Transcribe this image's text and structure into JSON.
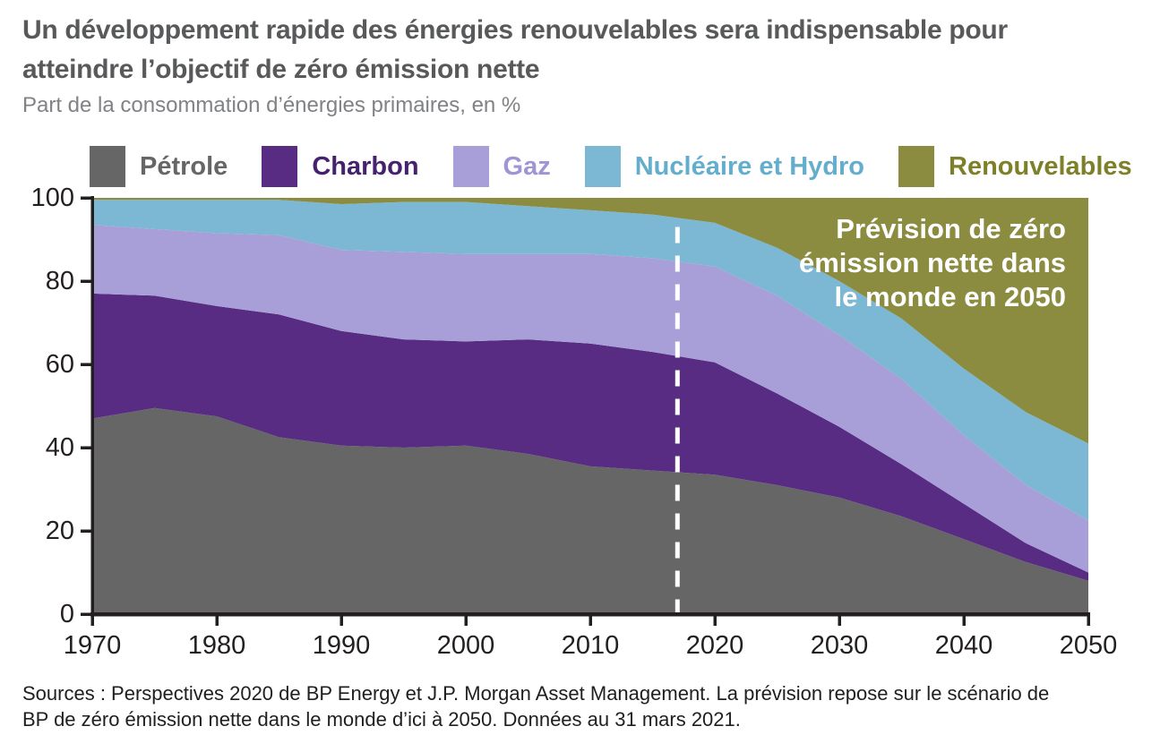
{
  "header": {
    "title_line1": "Un développement rapide des énergies renouvelables sera indispensable pour",
    "title_line2": "atteindre l’objectif de zéro émission nette",
    "subtitle": "Part de la consommation d’énergies primaires, en %"
  },
  "legend": {
    "items": [
      {
        "label": "Pétrole",
        "swatch_color": "#666666",
        "label_color": "#666666"
      },
      {
        "label": "Charbon",
        "swatch_color": "#582c83",
        "label_color": "#46226e"
      },
      {
        "label": "Gaz",
        "swatch_color": "#a89fd9",
        "label_color": "#a095d4"
      },
      {
        "label": "Nucléaire et Hydro",
        "swatch_color": "#7cb7d3",
        "label_color": "#64aecd"
      },
      {
        "label": "Renouvelables",
        "swatch_color": "#8b8c3f",
        "label_color": "#7d8029"
      }
    ]
  },
  "chart_data": {
    "type": "area",
    "stacked": true,
    "unit": "%",
    "title": "Part de la consommation d’énergies primaires, en %",
    "x": [
      1970,
      1975,
      1980,
      1985,
      1990,
      1995,
      2000,
      2005,
      2010,
      2015,
      2020,
      2025,
      2030,
      2035,
      2040,
      2045,
      2050
    ],
    "series": [
      {
        "name": "Pétrole",
        "color": "#666666",
        "values": [
          47,
          49.5,
          47.5,
          42.5,
          40.5,
          40,
          40.5,
          38.5,
          35.5,
          34.5,
          33.5,
          31,
          28,
          23.5,
          18,
          12.5,
          8
        ]
      },
      {
        "name": "Charbon",
        "color": "#582c83",
        "values": [
          30,
          27,
          26.5,
          29.5,
          27.5,
          26,
          25,
          27.5,
          29.5,
          28.5,
          27,
          22,
          17,
          12.5,
          8.5,
          4.5,
          2
        ]
      },
      {
        "name": "Gaz",
        "color": "#a89fd9",
        "values": [
          16.5,
          16,
          17.5,
          19,
          19.5,
          21,
          21,
          20.5,
          21.5,
          22.5,
          23,
          23.5,
          22,
          20.5,
          16.5,
          14,
          12.5
        ]
      },
      {
        "name": "Nucléaire et Hydro",
        "color": "#7cb7d3",
        "values": [
          6,
          7,
          8,
          8.5,
          11,
          12,
          12.5,
          11.5,
          10.5,
          10.5,
          10.5,
          11.5,
          13,
          14.5,
          16,
          17.5,
          18.5
        ]
      },
      {
        "name": "Renouvelables",
        "color": "#8b8c3f",
        "values": [
          0.5,
          0.5,
          0.5,
          0.5,
          1.5,
          1,
          1,
          2,
          3,
          4,
          6,
          12,
          20,
          29,
          41,
          51.5,
          59
        ]
      }
    ],
    "xlim": [
      1970,
      2050
    ],
    "ylim": [
      0,
      100
    ],
    "yticks": [
      0,
      20,
      40,
      60,
      80,
      100
    ],
    "xticks": [
      1970,
      1980,
      1990,
      2000,
      2010,
      2020,
      2030,
      2040,
      2050
    ],
    "axis_color": "#231f20",
    "forecast_divider": {
      "year": 2017,
      "top_value": 93,
      "color": "#ffffff",
      "style": "dashed"
    },
    "annotation": {
      "lines": [
        "Prévision de zéro",
        "émission nette dans",
        "le monde en 2050"
      ],
      "color": "#ffffff"
    }
  },
  "sources": {
    "line1": "Sources : Perspectives 2020 de BP Energy et J.P. Morgan Asset Management. La prévision repose sur le scénario de",
    "line2": "BP de zéro émission nette dans le monde d’ici à 2050. Données au 31 mars 2021."
  }
}
